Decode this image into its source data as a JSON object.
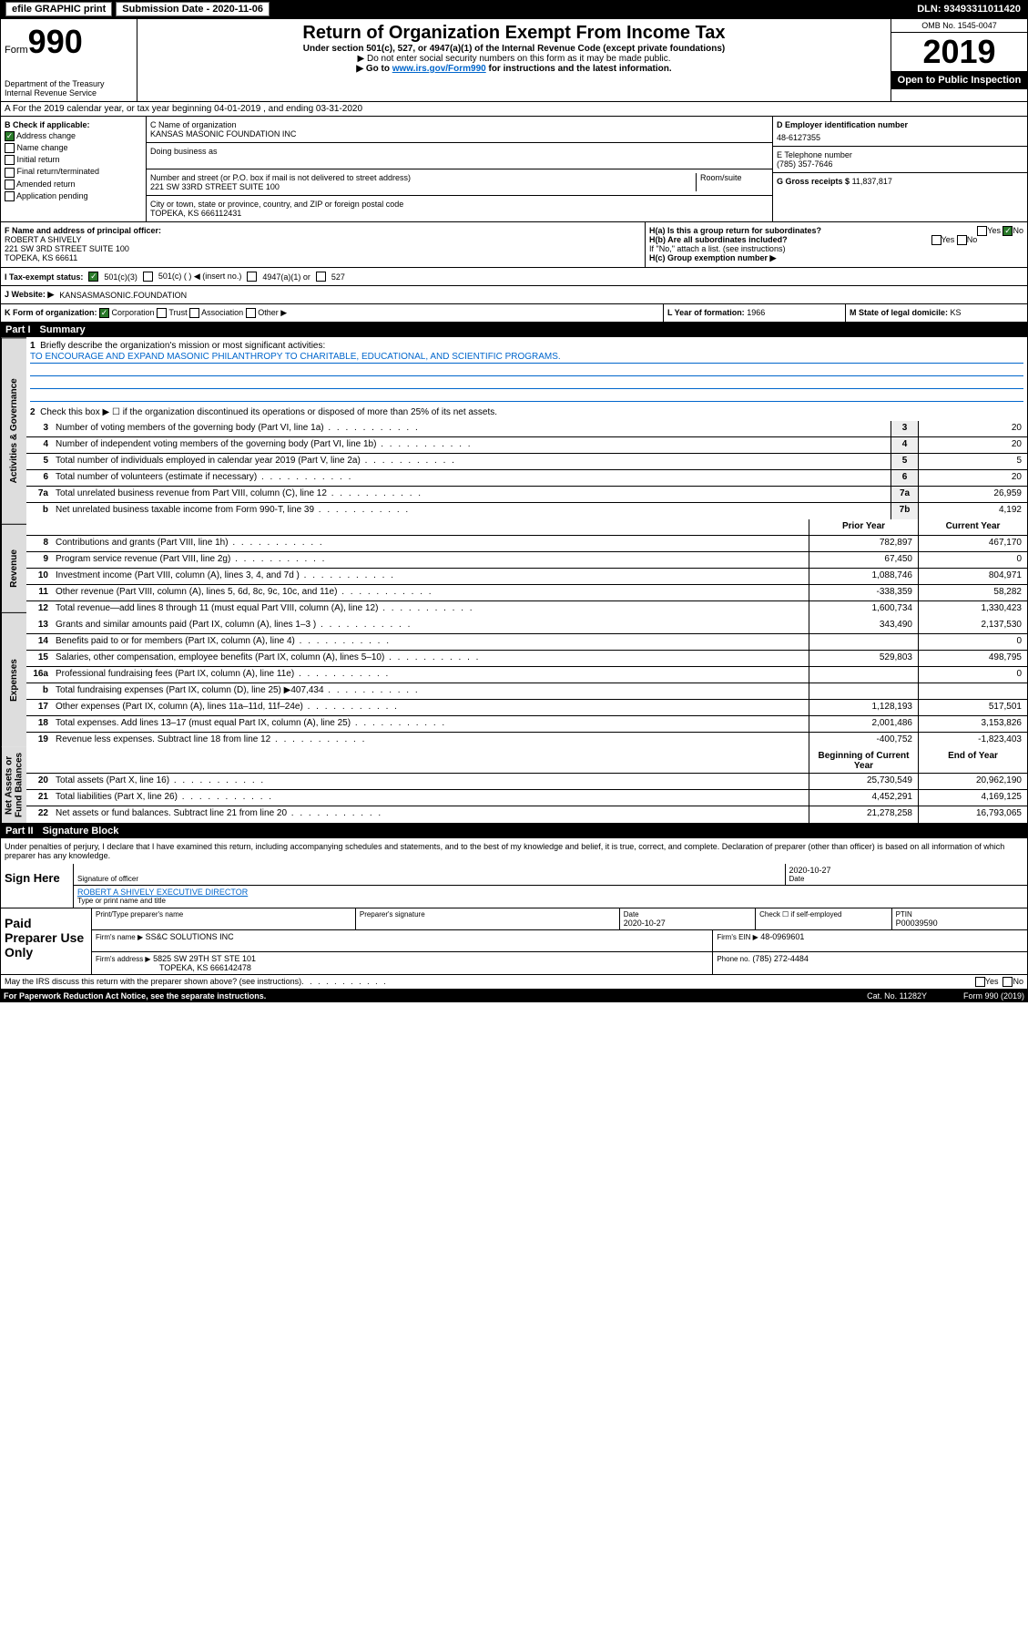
{
  "topbar": {
    "efile_label": "efile GRAPHIC print",
    "submission_label": "Submission Date - 2020-11-06",
    "dln_label": "DLN: 93493311011420"
  },
  "header": {
    "form_label": "Form",
    "form_number": "990",
    "dept": "Department of the Treasury",
    "irs": "Internal Revenue Service",
    "title": "Return of Organization Exempt From Income Tax",
    "subtitle": "Under section 501(c), 527, or 4947(a)(1) of the Internal Revenue Code (except private foundations)",
    "instr1": "▶ Do not enter social security numbers on this form as it may be made public.",
    "instr2_pre": "▶ Go to ",
    "instr2_link": "www.irs.gov/Form990",
    "instr2_post": " for instructions and the latest information.",
    "omb": "OMB No. 1545-0047",
    "year": "2019",
    "open_public": "Open to Public Inspection"
  },
  "row_a": "A For the 2019 calendar year, or tax year beginning 04-01-2019    , and ending 03-31-2020",
  "col_b": {
    "header": "B Check if applicable:",
    "items": [
      "Address change",
      "Name change",
      "Initial return",
      "Final return/terminated",
      "Amended return",
      "Application pending"
    ],
    "checked_index": 0
  },
  "col_c": {
    "name_label": "C Name of organization",
    "name": "KANSAS MASONIC FOUNDATION INC",
    "dba_label": "Doing business as",
    "addr_label": "Number and street (or P.O. box if mail is not delivered to street address)",
    "room_label": "Room/suite",
    "addr": "221 SW 33RD STREET SUITE 100",
    "city_label": "City or town, state or province, country, and ZIP or foreign postal code",
    "city": "TOPEKA, KS  666112431"
  },
  "col_d": {
    "label": "D Employer identification number",
    "value": "48-6127355"
  },
  "col_e": {
    "label": "E Telephone number",
    "value": "(785) 357-7646"
  },
  "col_g": {
    "label": "G Gross receipts $",
    "value": "11,837,817"
  },
  "row_f": {
    "label": "F  Name and address of principal officer:",
    "name": "ROBERT A SHIVELY",
    "addr": "221 SW 3RD STREET SUITE 100",
    "city": "TOPEKA, KS  66611"
  },
  "row_h": {
    "ha_label": "H(a)  Is this a group return for subordinates?",
    "hb_label": "H(b)  Are all subordinates included?",
    "hb_note": "If \"No,\" attach a list. (see instructions)",
    "hc_label": "H(c)  Group exemption number ▶",
    "yes": "Yes",
    "no": "No"
  },
  "row_i": {
    "label": "I   Tax-exempt status:",
    "opt1": "501(c)(3)",
    "opt2": "501(c) (   ) ◀ (insert no.)",
    "opt3": "4947(a)(1) or",
    "opt4": "527"
  },
  "row_j": {
    "label": "J   Website: ▶",
    "value": "KANSASMASONIC.FOUNDATION"
  },
  "row_k": {
    "label": "K Form of organization:",
    "opts": [
      "Corporation",
      "Trust",
      "Association",
      "Other ▶"
    ],
    "l_label": "L Year of formation:",
    "l_value": "1966",
    "m_label": "M State of legal domicile:",
    "m_value": "KS"
  },
  "part1": {
    "header": "Part I",
    "title": "Summary",
    "q1": "Briefly describe the organization's mission or most significant activities:",
    "mission": "TO ENCOURAGE AND EXPAND MASONIC PHILANTHROPY TO CHARITABLE, EDUCATIONAL, AND SCIENTIFIC PROGRAMS.",
    "q2": "Check this box ▶ ☐  if the organization discontinued its operations or disposed of more than 25% of its net assets.",
    "side_governance": "Activities & Governance",
    "side_revenue": "Revenue",
    "side_expenses": "Expenses",
    "side_net": "Net Assets or Fund Balances",
    "lines_gov": [
      {
        "n": "3",
        "t": "Number of voting members of the governing body (Part VI, line 1a)",
        "b": "3",
        "v": "20"
      },
      {
        "n": "4",
        "t": "Number of independent voting members of the governing body (Part VI, line 1b)",
        "b": "4",
        "v": "20"
      },
      {
        "n": "5",
        "t": "Total number of individuals employed in calendar year 2019 (Part V, line 2a)",
        "b": "5",
        "v": "5"
      },
      {
        "n": "6",
        "t": "Total number of volunteers (estimate if necessary)",
        "b": "6",
        "v": "20"
      },
      {
        "n": "7a",
        "t": "Total unrelated business revenue from Part VIII, column (C), line 12",
        "b": "7a",
        "v": "26,959"
      },
      {
        "n": "b",
        "t": "Net unrelated business taxable income from Form 990-T, line 39",
        "b": "7b",
        "v": "4,192"
      }
    ],
    "col_prior": "Prior Year",
    "col_current": "Current Year",
    "lines_rev": [
      {
        "n": "8",
        "t": "Contributions and grants (Part VIII, line 1h)",
        "p": "782,897",
        "c": "467,170"
      },
      {
        "n": "9",
        "t": "Program service revenue (Part VIII, line 2g)",
        "p": "67,450",
        "c": "0"
      },
      {
        "n": "10",
        "t": "Investment income (Part VIII, column (A), lines 3, 4, and 7d )",
        "p": "1,088,746",
        "c": "804,971"
      },
      {
        "n": "11",
        "t": "Other revenue (Part VIII, column (A), lines 5, 6d, 8c, 9c, 10c, and 11e)",
        "p": "-338,359",
        "c": "58,282"
      },
      {
        "n": "12",
        "t": "Total revenue—add lines 8 through 11 (must equal Part VIII, column (A), line 12)",
        "p": "1,600,734",
        "c": "1,330,423"
      }
    ],
    "lines_exp": [
      {
        "n": "13",
        "t": "Grants and similar amounts paid (Part IX, column (A), lines 1–3 )",
        "p": "343,490",
        "c": "2,137,530"
      },
      {
        "n": "14",
        "t": "Benefits paid to or for members (Part IX, column (A), line 4)",
        "p": "",
        "c": "0"
      },
      {
        "n": "15",
        "t": "Salaries, other compensation, employee benefits (Part IX, column (A), lines 5–10)",
        "p": "529,803",
        "c": "498,795"
      },
      {
        "n": "16a",
        "t": "Professional fundraising fees (Part IX, column (A), line 11e)",
        "p": "",
        "c": "0"
      },
      {
        "n": "b",
        "t": "Total fundraising expenses (Part IX, column (D), line 25) ▶407,434",
        "p": "",
        "c": ""
      },
      {
        "n": "17",
        "t": "Other expenses (Part IX, column (A), lines 11a–11d, 11f–24e)",
        "p": "1,128,193",
        "c": "517,501"
      },
      {
        "n": "18",
        "t": "Total expenses. Add lines 13–17 (must equal Part IX, column (A), line 25)",
        "p": "2,001,486",
        "c": "3,153,826"
      },
      {
        "n": "19",
        "t": "Revenue less expenses. Subtract line 18 from line 12",
        "p": "-400,752",
        "c": "-1,823,403"
      }
    ],
    "col_begin": "Beginning of Current Year",
    "col_end": "End of Year",
    "lines_net": [
      {
        "n": "20",
        "t": "Total assets (Part X, line 16)",
        "p": "25,730,549",
        "c": "20,962,190"
      },
      {
        "n": "21",
        "t": "Total liabilities (Part X, line 26)",
        "p": "4,452,291",
        "c": "4,169,125"
      },
      {
        "n": "22",
        "t": "Net assets or fund balances. Subtract line 21 from line 20",
        "p": "21,278,258",
        "c": "16,793,065"
      }
    ]
  },
  "part2": {
    "header": "Part II",
    "title": "Signature Block",
    "perjury": "Under penalties of perjury, I declare that I have examined this return, including accompanying schedules and statements, and to the best of my knowledge and belief, it is true, correct, and complete. Declaration of preparer (other than officer) is based on all information of which preparer has any knowledge.",
    "sign_here": "Sign Here",
    "sig_officer": "Signature of officer",
    "sig_date": "2020-10-27",
    "date_label": "Date",
    "officer_name": "ROBERT A SHIVELY  EXECUTIVE DIRECTOR",
    "type_name": "Type or print name and title",
    "paid_label": "Paid Preparer Use Only",
    "prep_name_label": "Print/Type preparer's name",
    "prep_sig_label": "Preparer's signature",
    "prep_date": "2020-10-27",
    "check_if": "Check ☐ if self-employed",
    "ptin_label": "PTIN",
    "ptin": "P00039590",
    "firm_name_label": "Firm's name    ▶",
    "firm_name": "SS&C SOLUTIONS INC",
    "firm_ein_label": "Firm's EIN ▶",
    "firm_ein": "48-0969601",
    "firm_addr_label": "Firm's address ▶",
    "firm_addr1": "5825 SW 29TH ST STE 101",
    "firm_addr2": "TOPEKA, KS  666142478",
    "phone_label": "Phone no.",
    "phone": "(785) 272-4484",
    "discuss": "May the IRS discuss this return with the preparer shown above? (see instructions)",
    "yes": "Yes",
    "no": "No"
  },
  "footer": {
    "paperwork": "For Paperwork Reduction Act Notice, see the separate instructions.",
    "cat": "Cat. No. 11282Y",
    "form": "Form 990 (2019)"
  }
}
